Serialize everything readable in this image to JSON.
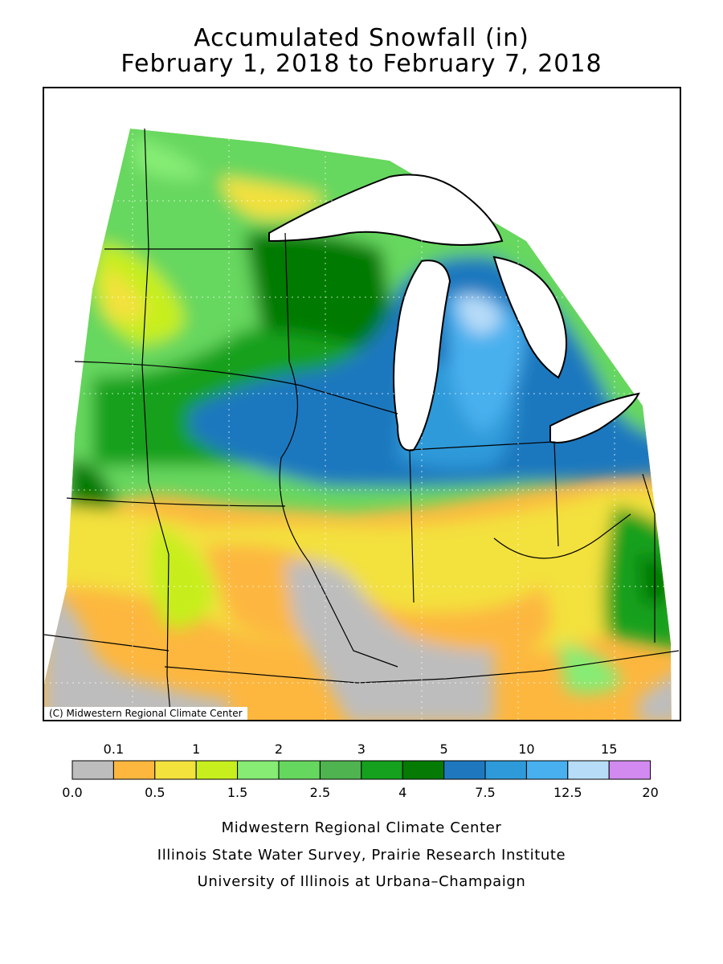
{
  "map": {
    "title_line1": "Accumulated Snowfall (in)",
    "title_line2": "February 1, 2018 to February 7, 2018",
    "credit": "(C) Midwestern Regional Climate Center",
    "units": "in"
  },
  "legend": {
    "top_labels": [
      "0.1",
      "1",
      "2",
      "3",
      "5",
      "10",
      "15"
    ],
    "bottom_labels": [
      "0.0",
      "0.5",
      "1.5",
      "2.5",
      "4",
      "7.5",
      "12.5",
      "20"
    ],
    "colors": [
      "#bdbdbd",
      "#fdb73f",
      "#f3e13c",
      "#c7ee1d",
      "#86ec74",
      "#66d75e",
      "#4fb34f",
      "#15a01d",
      "#057a04",
      "#1f78be",
      "#2e9ad9",
      "#48b0ee",
      "#b7dcf8",
      "#d38af0"
    ]
  },
  "footer": {
    "line1": "Midwestern Regional Climate Center",
    "line2": "Illinois State Water Survey, Prairie Research Institute",
    "line3": "University of Illinois at Urbana–Champaign"
  }
}
